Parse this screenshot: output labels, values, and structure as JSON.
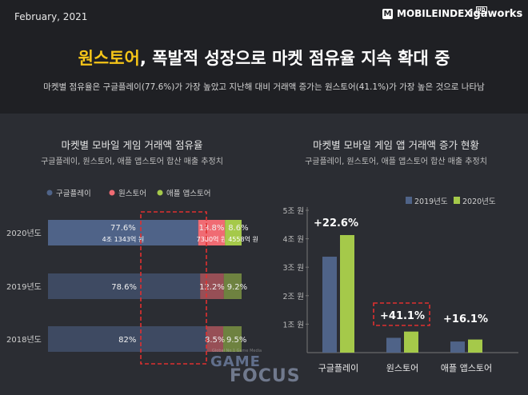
{
  "header": {
    "date": "February, 2021",
    "brand_mobileindex": "MOBILEINDEX",
    "brand_hd": "HD",
    "brand_mi_icon": "M",
    "brand_igaworks": "igaworks",
    "headline_highlight": "원스토어",
    "headline_rest": ", 폭발적 성장으로 마켓 점유율 지속 확대 중",
    "subtitle": "마켓별 점유율은 구글플레이(77.6%)가 가장 높았고 지난해 대비 거래액 증가는 원스토어(41.1%)가 가장 높은 것으로 나타남"
  },
  "colors": {
    "google": "#4f6388",
    "onestore": "#f06b73",
    "apple": "#a5c94a",
    "accent": "#f5c518",
    "highlight_box": "#e03030"
  },
  "chart_data": [
    {
      "type": "bar",
      "orientation": "horizontal-stacked",
      "title": "마켓별 모바일 게임 거래액 점유율",
      "subtitle": "구글플레이, 원스토어, 애플 앱스토어 합산 매출 추정치",
      "categories": [
        "2020년도",
        "2019년도",
        "2018년도"
      ],
      "series": [
        {
          "name": "구글플레이",
          "values": [
            77.6,
            78.6,
            82
          ],
          "labels": [
            "77.6%",
            "78.6%",
            "82%"
          ]
        },
        {
          "name": "원스토어",
          "values": [
            13.8,
            12.2,
            8.5
          ],
          "labels": [
            "13.8%",
            "12.2%",
            "8.5%"
          ]
        },
        {
          "name": "애플 앱스토어",
          "values": [
            8.6,
            9.2,
            9.5
          ],
          "labels": [
            "8.6%",
            "9.2%",
            "9.5%"
          ]
        }
      ],
      "amount_labels_2020": [
        "4조 1343억 원",
        "7380억 원",
        "4558억 원"
      ],
      "legend_position": "top"
    },
    {
      "type": "bar",
      "title": "마켓별 모바일 게임 앱 거래액 증가 현황",
      "subtitle": "구글플레이, 원스토어, 애플 앱스토어 합산 매출 추정치",
      "categories": [
        "구글플레이",
        "원스토어",
        "애플 앱스토어"
      ],
      "series": [
        {
          "name": "2019년도",
          "values": [
            3.37,
            0.52,
            0.39
          ]
        },
        {
          "name": "2020년도",
          "values": [
            4.13,
            0.74,
            0.46
          ]
        }
      ],
      "growth_labels": [
        "+22.6%",
        "+41.1%",
        "+16.1%"
      ],
      "yticks": [
        "1조 원",
        "2조 원",
        "3조 원",
        "4조 원",
        "5조 원"
      ],
      "ylim": [
        0,
        5
      ],
      "legend_position": "top-right"
    }
  ],
  "watermark": {
    "small": "Global No.1 Game Media",
    "game": "GAME",
    "focus": "FOCUS"
  }
}
